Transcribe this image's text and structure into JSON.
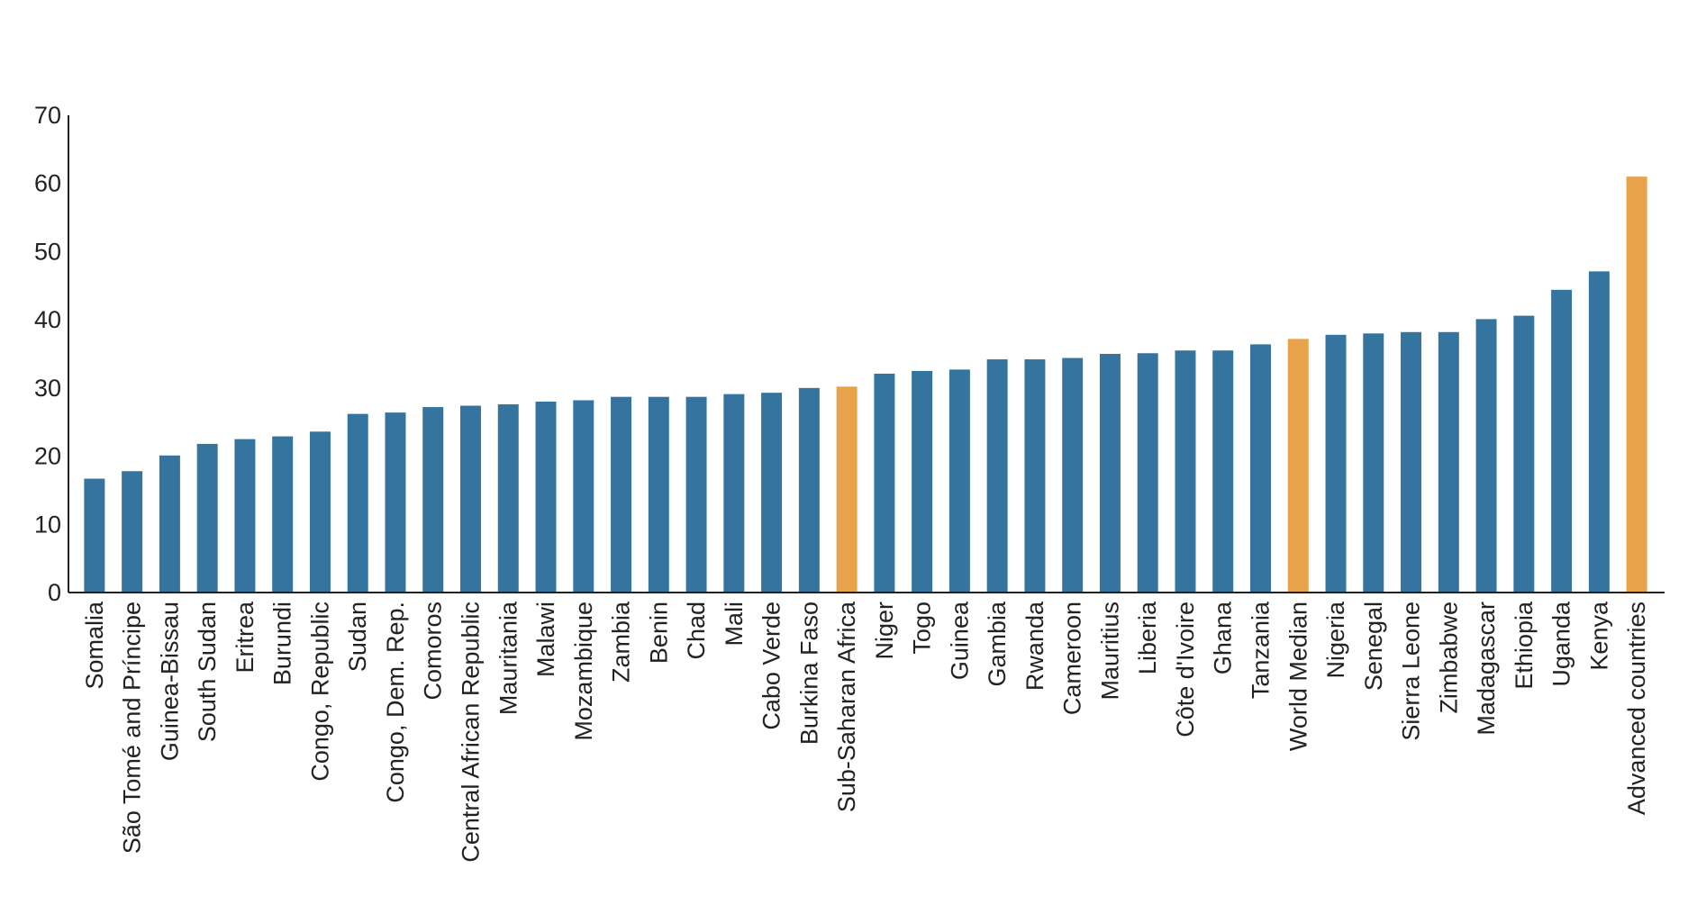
{
  "chart_data": {
    "type": "bar",
    "title": "",
    "xlabel": "",
    "ylabel": "",
    "ylim": [
      0,
      70
    ],
    "yticks": [
      0,
      10,
      20,
      30,
      40,
      50,
      60,
      70
    ],
    "grid": false,
    "legend": "none",
    "categories": [
      "Somalia",
      "São Tomé and Príncipe",
      "Guinea-Bissau",
      "South Sudan",
      "Eritrea",
      "Burundi",
      "Congo, Republic",
      "Sudan",
      "Congo, Dem. Rep.",
      "Comoros",
      "Central African Republic",
      "Mauritania",
      "Malawi",
      "Mozambique",
      "Zambia",
      "Benin",
      "Chad",
      "Mali",
      "Cabo Verde",
      "Burkina Faso",
      "Sub-Saharan Africa",
      "Niger",
      "Togo",
      "Guinea",
      "Gambia",
      "Rwanda",
      "Cameroon",
      "Mauritius",
      "Liberia",
      "Côte d'Ivoire",
      "Ghana",
      "Tanzania",
      "World Median",
      "Nigeria",
      "Senegal",
      "Sierra Leone",
      "Zimbabwe",
      "Madagascar",
      "Ethiopia",
      "Uganda",
      "Kenya",
      "Advanced  countries"
    ],
    "values": [
      16.7,
      17.8,
      20.1,
      21.8,
      22.5,
      22.9,
      23.6,
      26.2,
      26.4,
      27.2,
      27.4,
      27.6,
      28.0,
      28.2,
      28.7,
      28.7,
      28.7,
      29.1,
      29.3,
      30.0,
      30.2,
      32.1,
      32.5,
      32.7,
      34.2,
      34.2,
      34.4,
      35.0,
      35.1,
      35.5,
      35.5,
      36.4,
      37.2,
      37.8,
      38.0,
      38.2,
      38.2,
      40.1,
      40.6,
      44.4,
      47.1,
      61.0
    ],
    "highlight": [
      "Sub-Saharan Africa",
      "World Median",
      "Advanced  countries"
    ],
    "colors": {
      "bar": "#34749f",
      "highlight": "#e8a24a",
      "axis": "#222222"
    }
  }
}
